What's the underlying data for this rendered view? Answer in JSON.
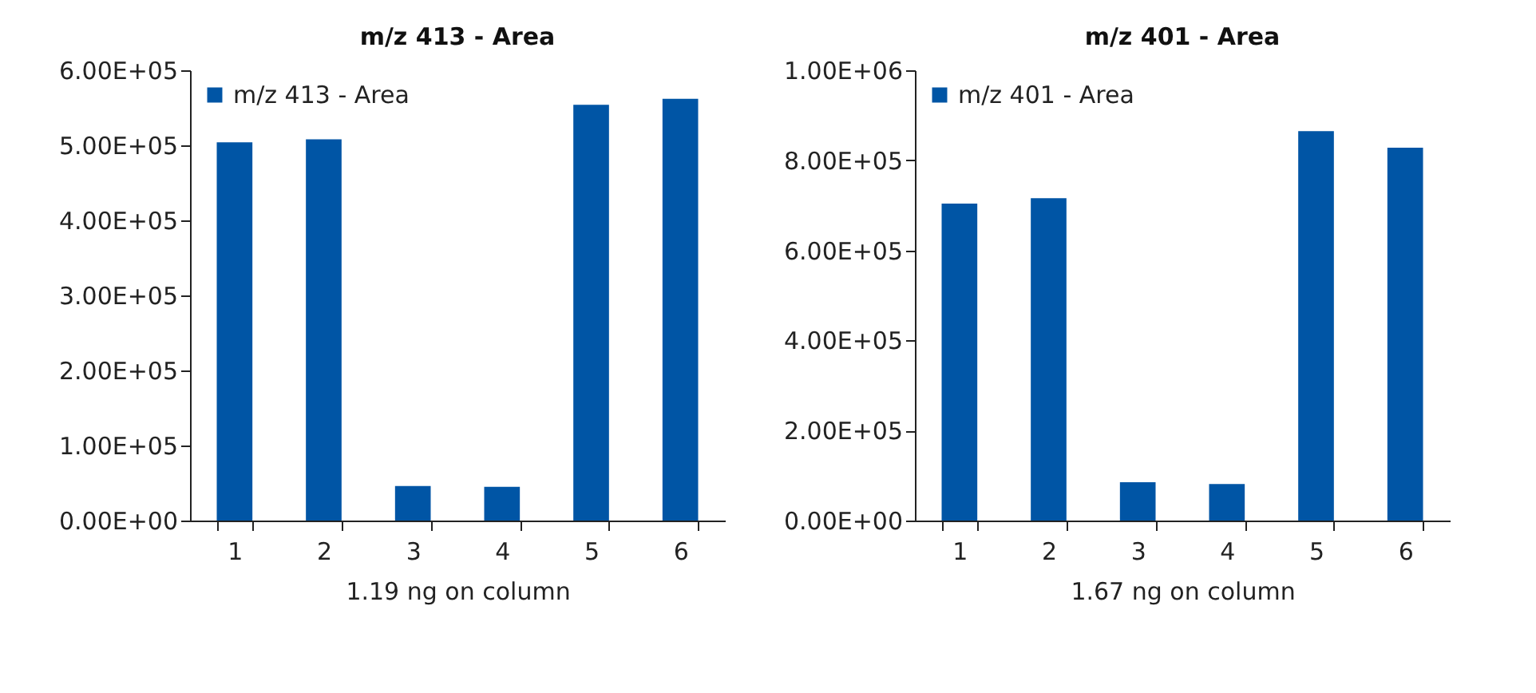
{
  "chart_data": [
    {
      "type": "bar",
      "title": "m/z 413 - Area",
      "xlabel": "1.19 ng on column",
      "categories": [
        "1",
        "2",
        "3",
        "4",
        "5",
        "6"
      ],
      "series": [
        {
          "name": "m/z 413 - Area",
          "color": "#0055a5",
          "values": [
            504000,
            508000,
            46000,
            45000,
            554000,
            562000
          ]
        }
      ],
      "ylim": [
        0,
        600000
      ],
      "yticks": [
        {
          "value": 0,
          "label": "0.00E+00"
        },
        {
          "value": 100000,
          "label": "1.00E+05"
        },
        {
          "value": 200000,
          "label": "2.00E+05"
        },
        {
          "value": 300000,
          "label": "3.00E+05"
        },
        {
          "value": 400000,
          "label": "4.00E+05"
        },
        {
          "value": 500000,
          "label": "5.00E+05"
        },
        {
          "value": 600000,
          "label": "6.00E+05"
        }
      ],
      "grid": false,
      "legend": "top left"
    },
    {
      "type": "bar",
      "title": "m/z 401 - Area",
      "xlabel": "1.67 ng on column",
      "categories": [
        "1",
        "2",
        "3",
        "4",
        "5",
        "6"
      ],
      "series": [
        {
          "name": "m/z 401 - Area",
          "color": "#0055a5",
          "values": [
            704000,
            716000,
            85000,
            81000,
            865000,
            828000
          ]
        }
      ],
      "ylim": [
        0,
        1000000
      ],
      "yticks": [
        {
          "value": 0,
          "label": "0.00E+00"
        },
        {
          "value": 200000,
          "label": "2.00E+05"
        },
        {
          "value": 400000,
          "label": "4.00E+05"
        },
        {
          "value": 600000,
          "label": "6.00E+05"
        },
        {
          "value": 800000,
          "label": "8.00E+05"
        },
        {
          "value": 1000000,
          "label": "1.00E+06"
        }
      ],
      "grid": false,
      "legend": "top left"
    }
  ]
}
